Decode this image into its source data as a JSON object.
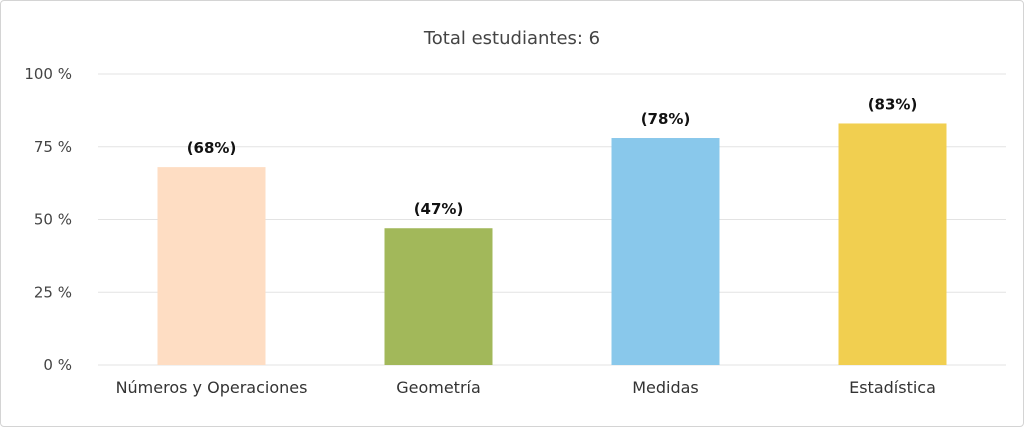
{
  "chart_data": {
    "type": "bar",
    "title": "Total estudiantes: 6",
    "xlabel": "",
    "ylabel": "",
    "categories": [
      "Números y Operaciones",
      "Geometría",
      "Medidas",
      "Estadística"
    ],
    "values": [
      68,
      47,
      78,
      83
    ],
    "data_labels": [
      "(68%)",
      "(47%)",
      "(78%)",
      "(83%)"
    ],
    "bar_colors": [
      "#FEDDC3",
      "#A2B85A",
      "#89C8EB",
      "#F1CF50"
    ],
    "ylim": [
      0,
      100
    ],
    "y_ticks": [
      0,
      25,
      50,
      75,
      100
    ],
    "y_tick_labels": [
      "0 %",
      "25 %",
      "50 %",
      "75 %",
      "100 %"
    ],
    "grid": true,
    "legend": "none"
  }
}
